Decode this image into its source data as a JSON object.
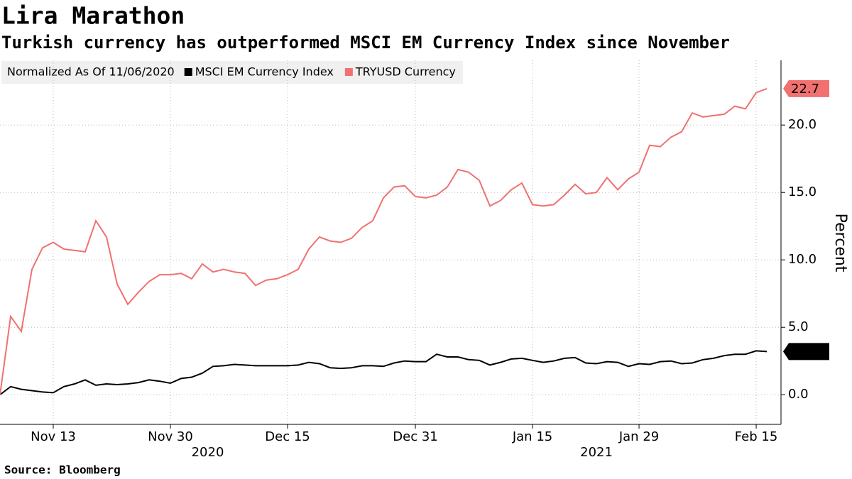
{
  "chart_data": {
    "type": "line",
    "title": "Lira Marathon",
    "subtitle": "Turkish currency has outperformed MSCI EM Currency Index since November",
    "legend_title": "Normalized As Of 11/06/2020",
    "y_label": "Percent",
    "source": "Source: Bloomberg",
    "categories": [
      "2020-11-06",
      "2020-11-09",
      "2020-11-10",
      "2020-11-11",
      "2020-11-12",
      "2020-11-13",
      "2020-11-16",
      "2020-11-17",
      "2020-11-18",
      "2020-11-19",
      "2020-11-20",
      "2020-11-23",
      "2020-11-24",
      "2020-11-25",
      "2020-11-26",
      "2020-11-27",
      "2020-11-30",
      "2020-12-01",
      "2020-12-02",
      "2020-12-03",
      "2020-12-04",
      "2020-12-07",
      "2020-12-08",
      "2020-12-09",
      "2020-12-10",
      "2020-12-11",
      "2020-12-14",
      "2020-12-15",
      "2020-12-16",
      "2020-12-17",
      "2020-12-18",
      "2020-12-21",
      "2020-12-22",
      "2020-12-23",
      "2020-12-24",
      "2020-12-25",
      "2020-12-28",
      "2020-12-29",
      "2020-12-30",
      "2020-12-31",
      "2021-01-01",
      "2021-01-04",
      "2021-01-05",
      "2021-01-06",
      "2021-01-07",
      "2021-01-08",
      "2021-01-11",
      "2021-01-12",
      "2021-01-13",
      "2021-01-14",
      "2021-01-15",
      "2021-01-18",
      "2021-01-19",
      "2021-01-20",
      "2021-01-21",
      "2021-01-22",
      "2021-01-25",
      "2021-01-26",
      "2021-01-27",
      "2021-01-28",
      "2021-01-29",
      "2021-02-01",
      "2021-02-02",
      "2021-02-03",
      "2021-02-04",
      "2021-02-05",
      "2021-02-08",
      "2021-02-09",
      "2021-02-10",
      "2021-02-11",
      "2021-02-12",
      "2021-02-15",
      "2021-02-16"
    ],
    "series": [
      {
        "name": "MSCI EM Currency Index",
        "color": "#000000",
        "values": [
          0,
          0.6,
          0.4,
          0.3,
          0.2,
          0.15,
          0.6,
          0.8,
          1.1,
          0.7,
          0.8,
          0.75,
          0.8,
          0.9,
          1.1,
          1.0,
          0.85,
          1.2,
          1.3,
          1.6,
          2.1,
          2.15,
          2.25,
          2.2,
          2.15,
          2.15,
          2.15,
          2.15,
          2.2,
          2.4,
          2.3,
          2.0,
          1.95,
          2.0,
          2.15,
          2.15,
          2.1,
          2.35,
          2.5,
          2.45,
          2.45,
          3.0,
          2.8,
          2.8,
          2.6,
          2.55,
          2.2,
          2.4,
          2.65,
          2.7,
          2.55,
          2.4,
          2.5,
          2.7,
          2.75,
          2.35,
          2.3,
          2.45,
          2.4,
          2.1,
          2.3,
          2.25,
          2.45,
          2.5,
          2.3,
          2.35,
          2.6,
          2.7,
          2.9,
          3.0,
          3.0,
          3.25,
          3.2
        ]
      },
      {
        "name": "TRYUSD Currency",
        "color": "#f07170",
        "values": [
          0,
          5.8,
          4.7,
          9.3,
          10.9,
          11.3,
          10.8,
          10.7,
          10.6,
          12.9,
          11.7,
          8.2,
          6.7,
          7.6,
          8.4,
          8.9,
          8.9,
          9.0,
          8.6,
          9.7,
          9.1,
          9.3,
          9.1,
          9.0,
          8.1,
          8.5,
          8.6,
          8.9,
          9.3,
          10.8,
          11.7,
          11.4,
          11.3,
          11.6,
          12.4,
          12.9,
          14.6,
          15.4,
          15.5,
          14.7,
          14.6,
          14.8,
          15.4,
          16.7,
          16.5,
          15.9,
          14.0,
          14.4,
          15.2,
          15.7,
          14.1,
          14.0,
          14.1,
          14.8,
          15.6,
          14.9,
          15.0,
          16.1,
          15.2,
          16.0,
          16.5,
          18.5,
          18.4,
          19.1,
          19.5,
          20.9,
          20.6,
          20.7,
          20.8,
          21.4,
          21.2,
          22.4,
          22.7
        ]
      }
    ],
    "xticks": [
      {
        "value": "2020-11-13",
        "label": "Nov 13"
      },
      {
        "value": "2020-11-30",
        "label": "Nov 30"
      },
      {
        "value": "2020-12-15",
        "label": "Dec 15"
      },
      {
        "value": "2020-12-31",
        "label": "Dec 31"
      },
      {
        "value": "2021-01-15",
        "label": "Jan 15"
      },
      {
        "value": "2021-01-29",
        "label": "Jan 29"
      },
      {
        "value": "2021-02-15",
        "label": "Feb 15"
      }
    ],
    "year_labels": [
      "2020",
      "2021"
    ],
    "ylim": [
      -2.2,
      24.8
    ],
    "yticks": [
      {
        "value": 0,
        "label": "0.0"
      },
      {
        "value": 5,
        "label": "5.0"
      },
      {
        "value": 10,
        "label": "10.0"
      },
      {
        "value": 15,
        "label": "15.0"
      },
      {
        "value": 20,
        "label": "20.0"
      }
    ],
    "grid": true,
    "legend_position": "top-left"
  }
}
